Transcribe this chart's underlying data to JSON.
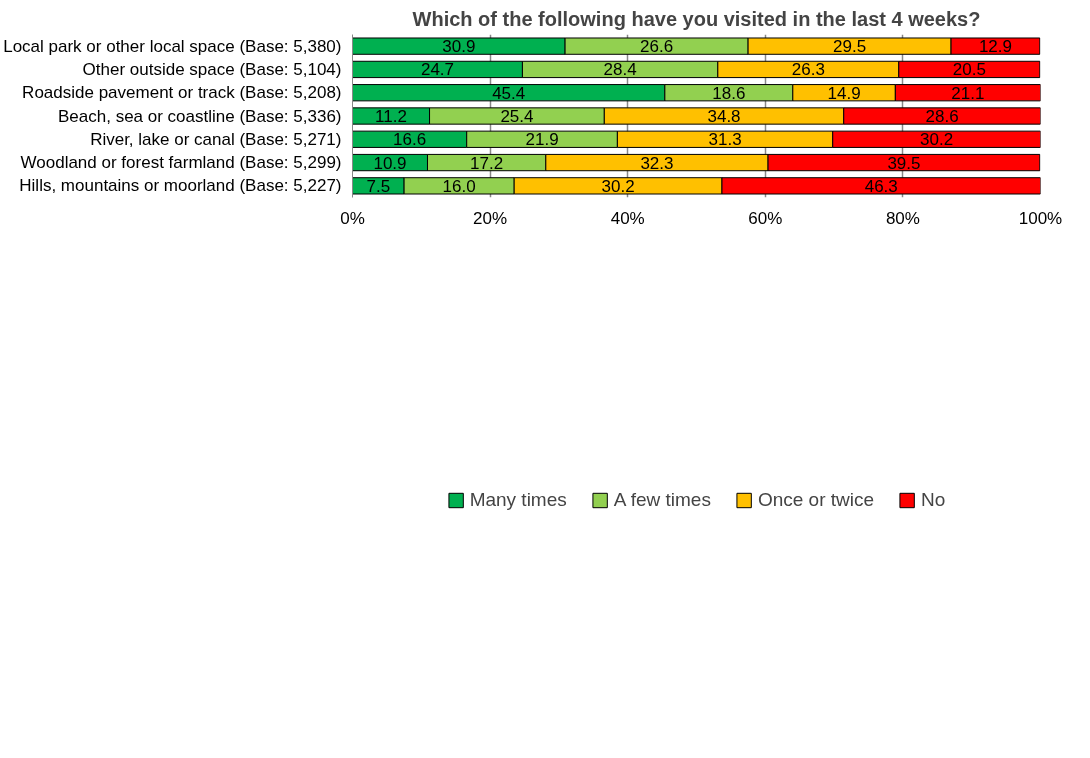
{
  "chart_data": {
    "type": "bar",
    "orientation": "horizontal",
    "stacked": true,
    "title": "Which of the following have you visited in the last 4 weeks?",
    "categories": [
      "Local park or other local space (Base: 5,380)",
      "Other outside space (Base: 5,104)",
      "Roadside pavement or track (Base: 5,208)",
      "Beach, sea or coastline (Base: 5,336)",
      "River, lake or canal (Base: 5,271)",
      "Woodland or forest farmland (Base: 5,299)",
      "Hills, mountains or moorland (Base: 5,227)"
    ],
    "series": [
      {
        "name": "Many times",
        "color": "#00b050",
        "values": [
          30.9,
          24.7,
          45.4,
          11.2,
          16.6,
          10.9,
          7.5
        ],
        "value_labels": [
          "30.9",
          "24.7",
          "45.4",
          "11.2",
          "16.6",
          "10.9",
          "7.5"
        ]
      },
      {
        "name": "A few times",
        "color": "#92d050",
        "values": [
          26.6,
          28.4,
          18.6,
          25.4,
          21.9,
          17.2,
          16.0
        ],
        "value_labels": [
          "26.6",
          "28.4",
          "18.6",
          "25.4",
          "21.9",
          "17.2",
          "16.0"
        ]
      },
      {
        "name": "Once or twice",
        "color": "#ffc000",
        "values": [
          29.5,
          26.3,
          14.9,
          34.8,
          31.3,
          32.3,
          30.2
        ],
        "value_labels": [
          "29.5",
          "26.3",
          "14.9",
          "34.8",
          "31.3",
          "32.3",
          "30.2"
        ]
      },
      {
        "name": "No",
        "color": "#ff0000",
        "values": [
          12.9,
          20.5,
          21.1,
          28.6,
          30.2,
          39.5,
          46.3
        ],
        "value_labels": [
          "12.9",
          "20.5",
          "21.1",
          "28.6",
          "30.2",
          "39.5",
          "46.3"
        ]
      }
    ],
    "xlim": [
      0,
      100
    ],
    "xticks": [
      {
        "value": 0,
        "label": "0%"
      },
      {
        "value": 20,
        "label": "20%"
      },
      {
        "value": 40,
        "label": "40%"
      },
      {
        "value": 60,
        "label": "60%"
      },
      {
        "value": 80,
        "label": "80%"
      },
      {
        "value": 100,
        "label": "100%"
      }
    ],
    "grid": "x",
    "legend": "bottom"
  }
}
